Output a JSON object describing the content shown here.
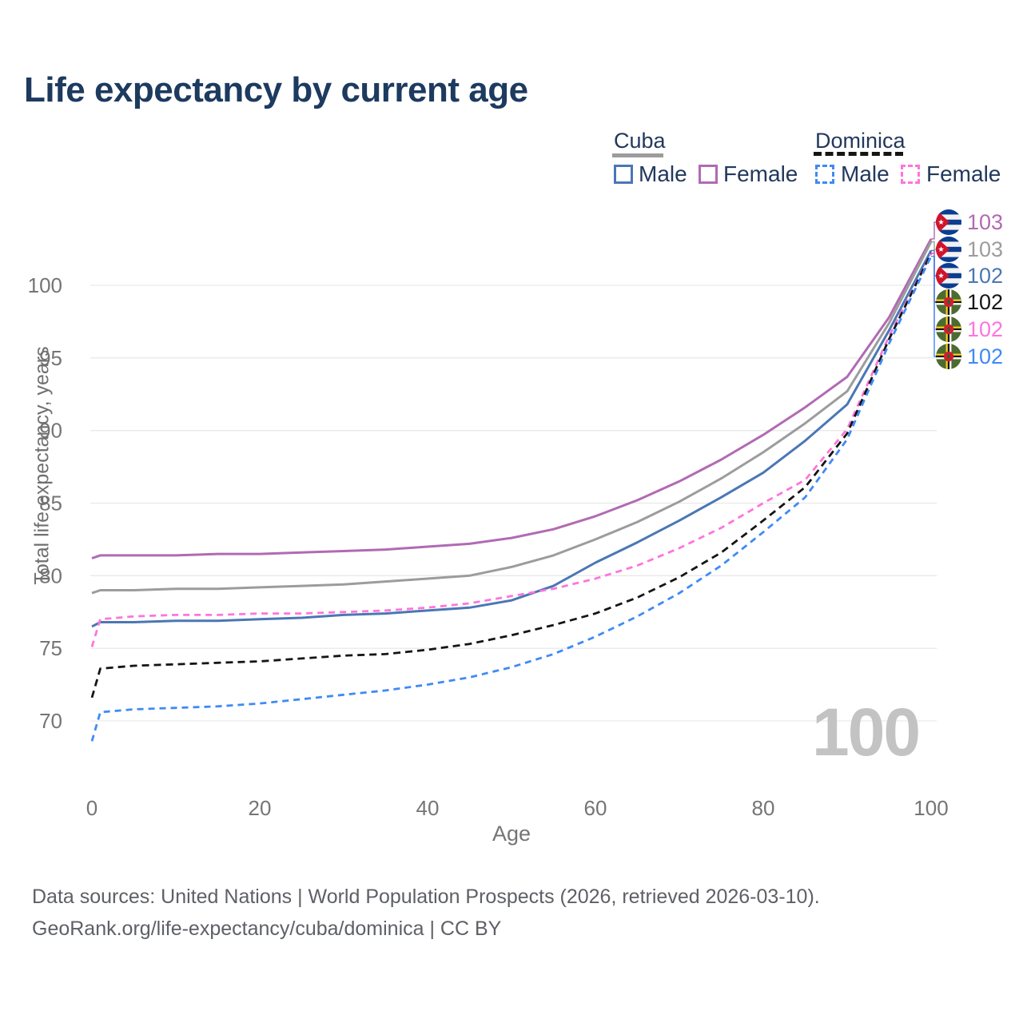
{
  "title": "Life expectancy by current age",
  "legend": {
    "groups": [
      {
        "label": "Cuba",
        "style": "solid",
        "line_color": "#9c9c9c",
        "items": [
          {
            "label": "Male",
            "color": "#4a77b4"
          },
          {
            "label": "Female",
            "color": "#b16ab3"
          }
        ]
      },
      {
        "label": "Dominica",
        "style": "dashed",
        "line_color": "#151515",
        "items": [
          {
            "label": "Male",
            "color": "#3f8af5"
          },
          {
            "label": "Female",
            "color": "#ff74dd"
          }
        ]
      }
    ]
  },
  "watermark": "100",
  "end_labels": [
    {
      "flag": "cuba",
      "series_id": "cuba_female",
      "value": "103",
      "color": "#b16ab3"
    },
    {
      "flag": "cuba",
      "series_id": "cuba_both",
      "value": "103",
      "color": "#9c9c9c"
    },
    {
      "flag": "cuba",
      "series_id": "cuba_male",
      "value": "102",
      "color": "#4a77b4"
    },
    {
      "flag": "dominica",
      "series_id": "dominica_both",
      "value": "102",
      "color": "#151515"
    },
    {
      "flag": "dominica",
      "series_id": "dominica_female",
      "value": "102",
      "color": "#ff74dd"
    },
    {
      "flag": "dominica",
      "series_id": "dominica_male",
      "value": "102",
      "color": "#3f8af5"
    }
  ],
  "footer": {
    "line1": "Data sources: United Nations | World Population Prospects (2026, retrieved 2026-03-10).",
    "line2": "GeoRank.org/life-expectancy/cuba/dominica | CC BY"
  },
  "colors": {
    "title": "#1d3a5f",
    "axis_text": "#757575",
    "gridline": "#e9e9e9",
    "watermark": "#c3c3c3",
    "cuba_male": "#4a77b4",
    "cuba_female": "#b16ab3",
    "cuba_both": "#9c9c9c",
    "dominica_male": "#3f8af5",
    "dominica_female": "#ff74dd",
    "dominica_both": "#151515"
  },
  "chart_data": {
    "type": "line",
    "title": "Life expectancy by current age",
    "xlabel": "Age",
    "ylabel": "Total life expectancy, years",
    "xticks": [
      0,
      20,
      40,
      60,
      80,
      100
    ],
    "yticks": [
      70,
      75,
      80,
      85,
      90,
      95,
      100
    ],
    "xlim": [
      0,
      100
    ],
    "ylim": [
      67,
      104
    ],
    "grid": "horizontal",
    "legend_position": "top-right",
    "x": [
      0,
      1,
      5,
      10,
      15,
      20,
      25,
      30,
      35,
      40,
      45,
      50,
      55,
      60,
      65,
      70,
      75,
      80,
      85,
      90,
      95,
      100
    ],
    "series": [
      {
        "id": "cuba_female",
        "name": "Cuba Female",
        "color": "#b16ab3",
        "dash": null,
        "width": 3,
        "values": [
          81.2,
          81.4,
          81.4,
          81.4,
          81.5,
          81.5,
          81.6,
          81.7,
          81.8,
          82.0,
          82.2,
          82.6,
          83.2,
          84.1,
          85.2,
          86.5,
          88.0,
          89.7,
          91.6,
          93.7,
          97.8,
          103.2
        ]
      },
      {
        "id": "cuba_both",
        "name": "Cuba Both sexes",
        "color": "#9c9c9c",
        "dash": null,
        "width": 3,
        "values": [
          78.8,
          79.0,
          79.0,
          79.1,
          79.1,
          79.2,
          79.3,
          79.4,
          79.6,
          79.8,
          80.0,
          80.6,
          81.4,
          82.5,
          83.7,
          85.1,
          86.7,
          88.5,
          90.5,
          92.7,
          97.4,
          103.0
        ]
      },
      {
        "id": "cuba_male",
        "name": "Cuba Male",
        "color": "#4a77b4",
        "dash": null,
        "width": 3,
        "values": [
          76.5,
          76.8,
          76.8,
          76.9,
          76.9,
          77.0,
          77.1,
          77.3,
          77.4,
          77.6,
          77.8,
          78.3,
          79.3,
          80.9,
          82.3,
          83.8,
          85.4,
          87.1,
          89.3,
          91.8,
          96.9,
          102.4
        ]
      },
      {
        "id": "dominica_female",
        "name": "Dominica Female",
        "color": "#ff74dd",
        "dash": "8 6",
        "width": 2.8,
        "values": [
          75.1,
          77.0,
          77.2,
          77.3,
          77.3,
          77.4,
          77.4,
          77.5,
          77.6,
          77.8,
          78.1,
          78.6,
          79.1,
          79.8,
          80.7,
          81.9,
          83.3,
          85.0,
          86.6,
          90.1,
          96.5,
          102.2
        ]
      },
      {
        "id": "dominica_both",
        "name": "Dominica Both sexes",
        "color": "#151515",
        "dash": "9 6",
        "width": 2.8,
        "values": [
          71.6,
          73.6,
          73.8,
          73.9,
          74.0,
          74.1,
          74.3,
          74.5,
          74.6,
          74.9,
          75.3,
          75.9,
          76.6,
          77.4,
          78.5,
          79.9,
          81.6,
          83.8,
          86.1,
          89.8,
          96.3,
          102.2
        ]
      },
      {
        "id": "dominica_male",
        "name": "Dominica Male",
        "color": "#3f8af5",
        "dash": "8 6",
        "width": 2.8,
        "values": [
          68.6,
          70.6,
          70.8,
          70.9,
          71.0,
          71.2,
          71.5,
          71.8,
          72.1,
          72.5,
          73.0,
          73.7,
          74.6,
          75.8,
          77.2,
          78.8,
          80.7,
          83.0,
          85.4,
          89.4,
          96.0,
          102.0
        ]
      }
    ]
  }
}
